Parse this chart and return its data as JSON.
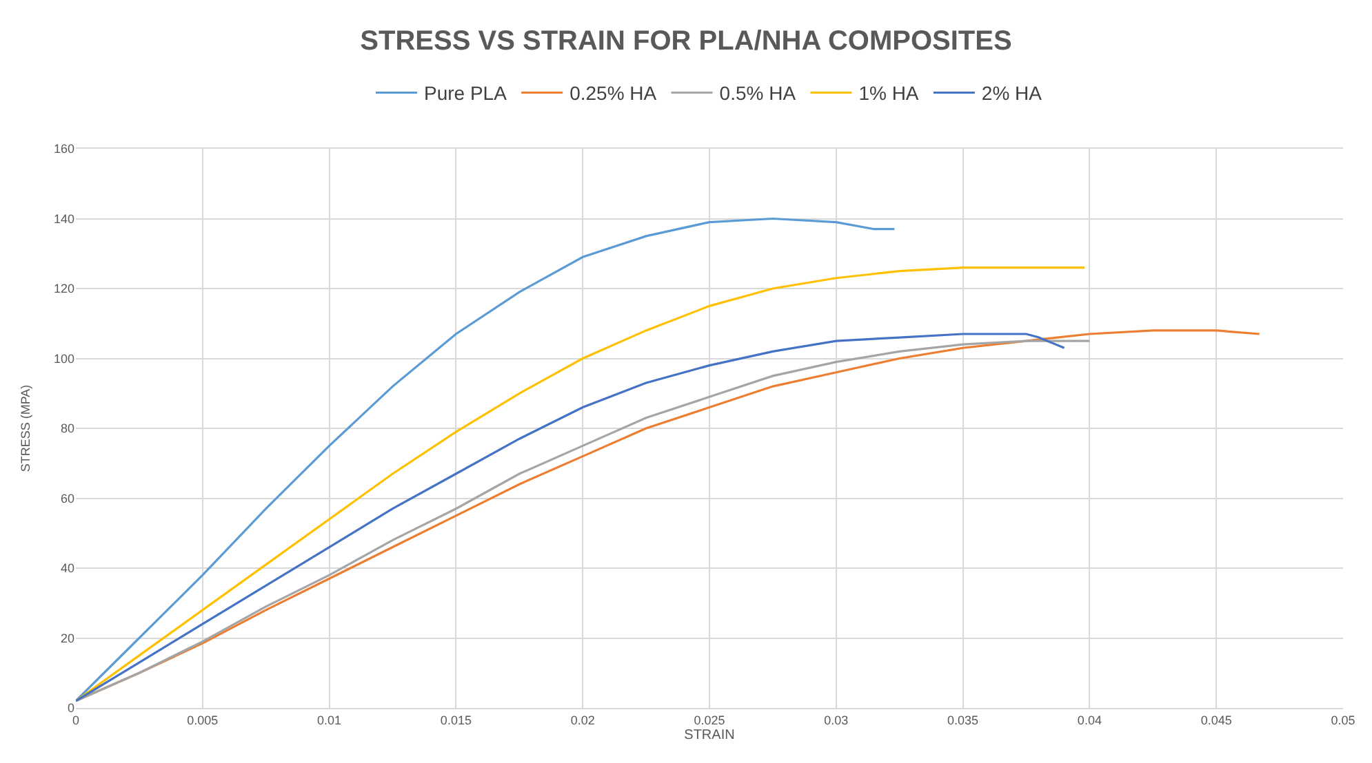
{
  "chart_data": {
    "type": "line",
    "title": "STRESS VS STRAIN FOR PLA/NHA COMPOSITES",
    "xlabel": "STRAIN",
    "ylabel": "STRESS (MPA)",
    "xlim": [
      0,
      0.05
    ],
    "xticks": [
      0,
      0.005,
      0.01,
      0.015,
      0.02,
      0.025,
      0.03,
      0.035,
      0.04,
      0.045,
      0.05
    ],
    "ylim": [
      0,
      160
    ],
    "yticks": [
      0,
      20,
      40,
      60,
      80,
      100,
      120,
      140,
      160
    ],
    "grid": true,
    "legend": "top",
    "marker": "none",
    "line_style": "solid",
    "series": [
      {
        "name": "Pure PLA",
        "color": "#5b9bd5",
        "x": [
          0,
          0.0025,
          0.005,
          0.0075,
          0.01,
          0.0125,
          0.015,
          0.0175,
          0.02,
          0.0225,
          0.025,
          0.0275,
          0.03,
          0.0315,
          0.0323
        ],
        "values": [
          2,
          20,
          38,
          57,
          75,
          92,
          107,
          119,
          129,
          135,
          139,
          140,
          139,
          137,
          137
        ]
      },
      {
        "name": "0.25% HA",
        "color": "#ed7d31",
        "x": [
          0,
          0.0025,
          0.005,
          0.0075,
          0.01,
          0.0125,
          0.015,
          0.0175,
          0.02,
          0.0225,
          0.025,
          0.0275,
          0.03,
          0.0325,
          0.035,
          0.0375,
          0.04,
          0.0425,
          0.045,
          0.0467
        ],
        "values": [
          2,
          10,
          18.5,
          28,
          37,
          46,
          55,
          64,
          72,
          80,
          86,
          92,
          96,
          100,
          103,
          105,
          107,
          108,
          108,
          107
        ]
      },
      {
        "name": "0.5% HA",
        "color": "#a5a5a5",
        "x": [
          0,
          0.0025,
          0.005,
          0.0075,
          0.01,
          0.0125,
          0.015,
          0.0175,
          0.02,
          0.0225,
          0.025,
          0.0275,
          0.03,
          0.0325,
          0.035,
          0.0375,
          0.04
        ],
        "values": [
          2,
          10,
          19,
          29,
          38,
          48,
          57,
          67,
          75,
          83,
          89,
          95,
          99,
          102,
          104,
          105,
          105
        ]
      },
      {
        "name": "1% HA",
        "color": "#ffc000",
        "x": [
          0,
          0.0025,
          0.005,
          0.0075,
          0.01,
          0.0125,
          0.015,
          0.0175,
          0.02,
          0.0225,
          0.025,
          0.0275,
          0.03,
          0.0325,
          0.035,
          0.0375,
          0.0398
        ],
        "values": [
          2,
          15,
          28,
          41,
          54,
          67,
          79,
          90,
          100,
          108,
          115,
          120,
          123,
          125,
          126,
          126,
          126
        ]
      },
      {
        "name": "2% HA",
        "color": "#4472c4",
        "x": [
          0,
          0.0025,
          0.005,
          0.0075,
          0.01,
          0.0125,
          0.015,
          0.0175,
          0.02,
          0.0225,
          0.025,
          0.0275,
          0.03,
          0.0325,
          0.035,
          0.0375,
          0.038,
          0.039
        ],
        "values": [
          2,
          13,
          24,
          35,
          46,
          57,
          67,
          77,
          86,
          93,
          98,
          102,
          105,
          106,
          107,
          107,
          106,
          103
        ]
      }
    ]
  }
}
